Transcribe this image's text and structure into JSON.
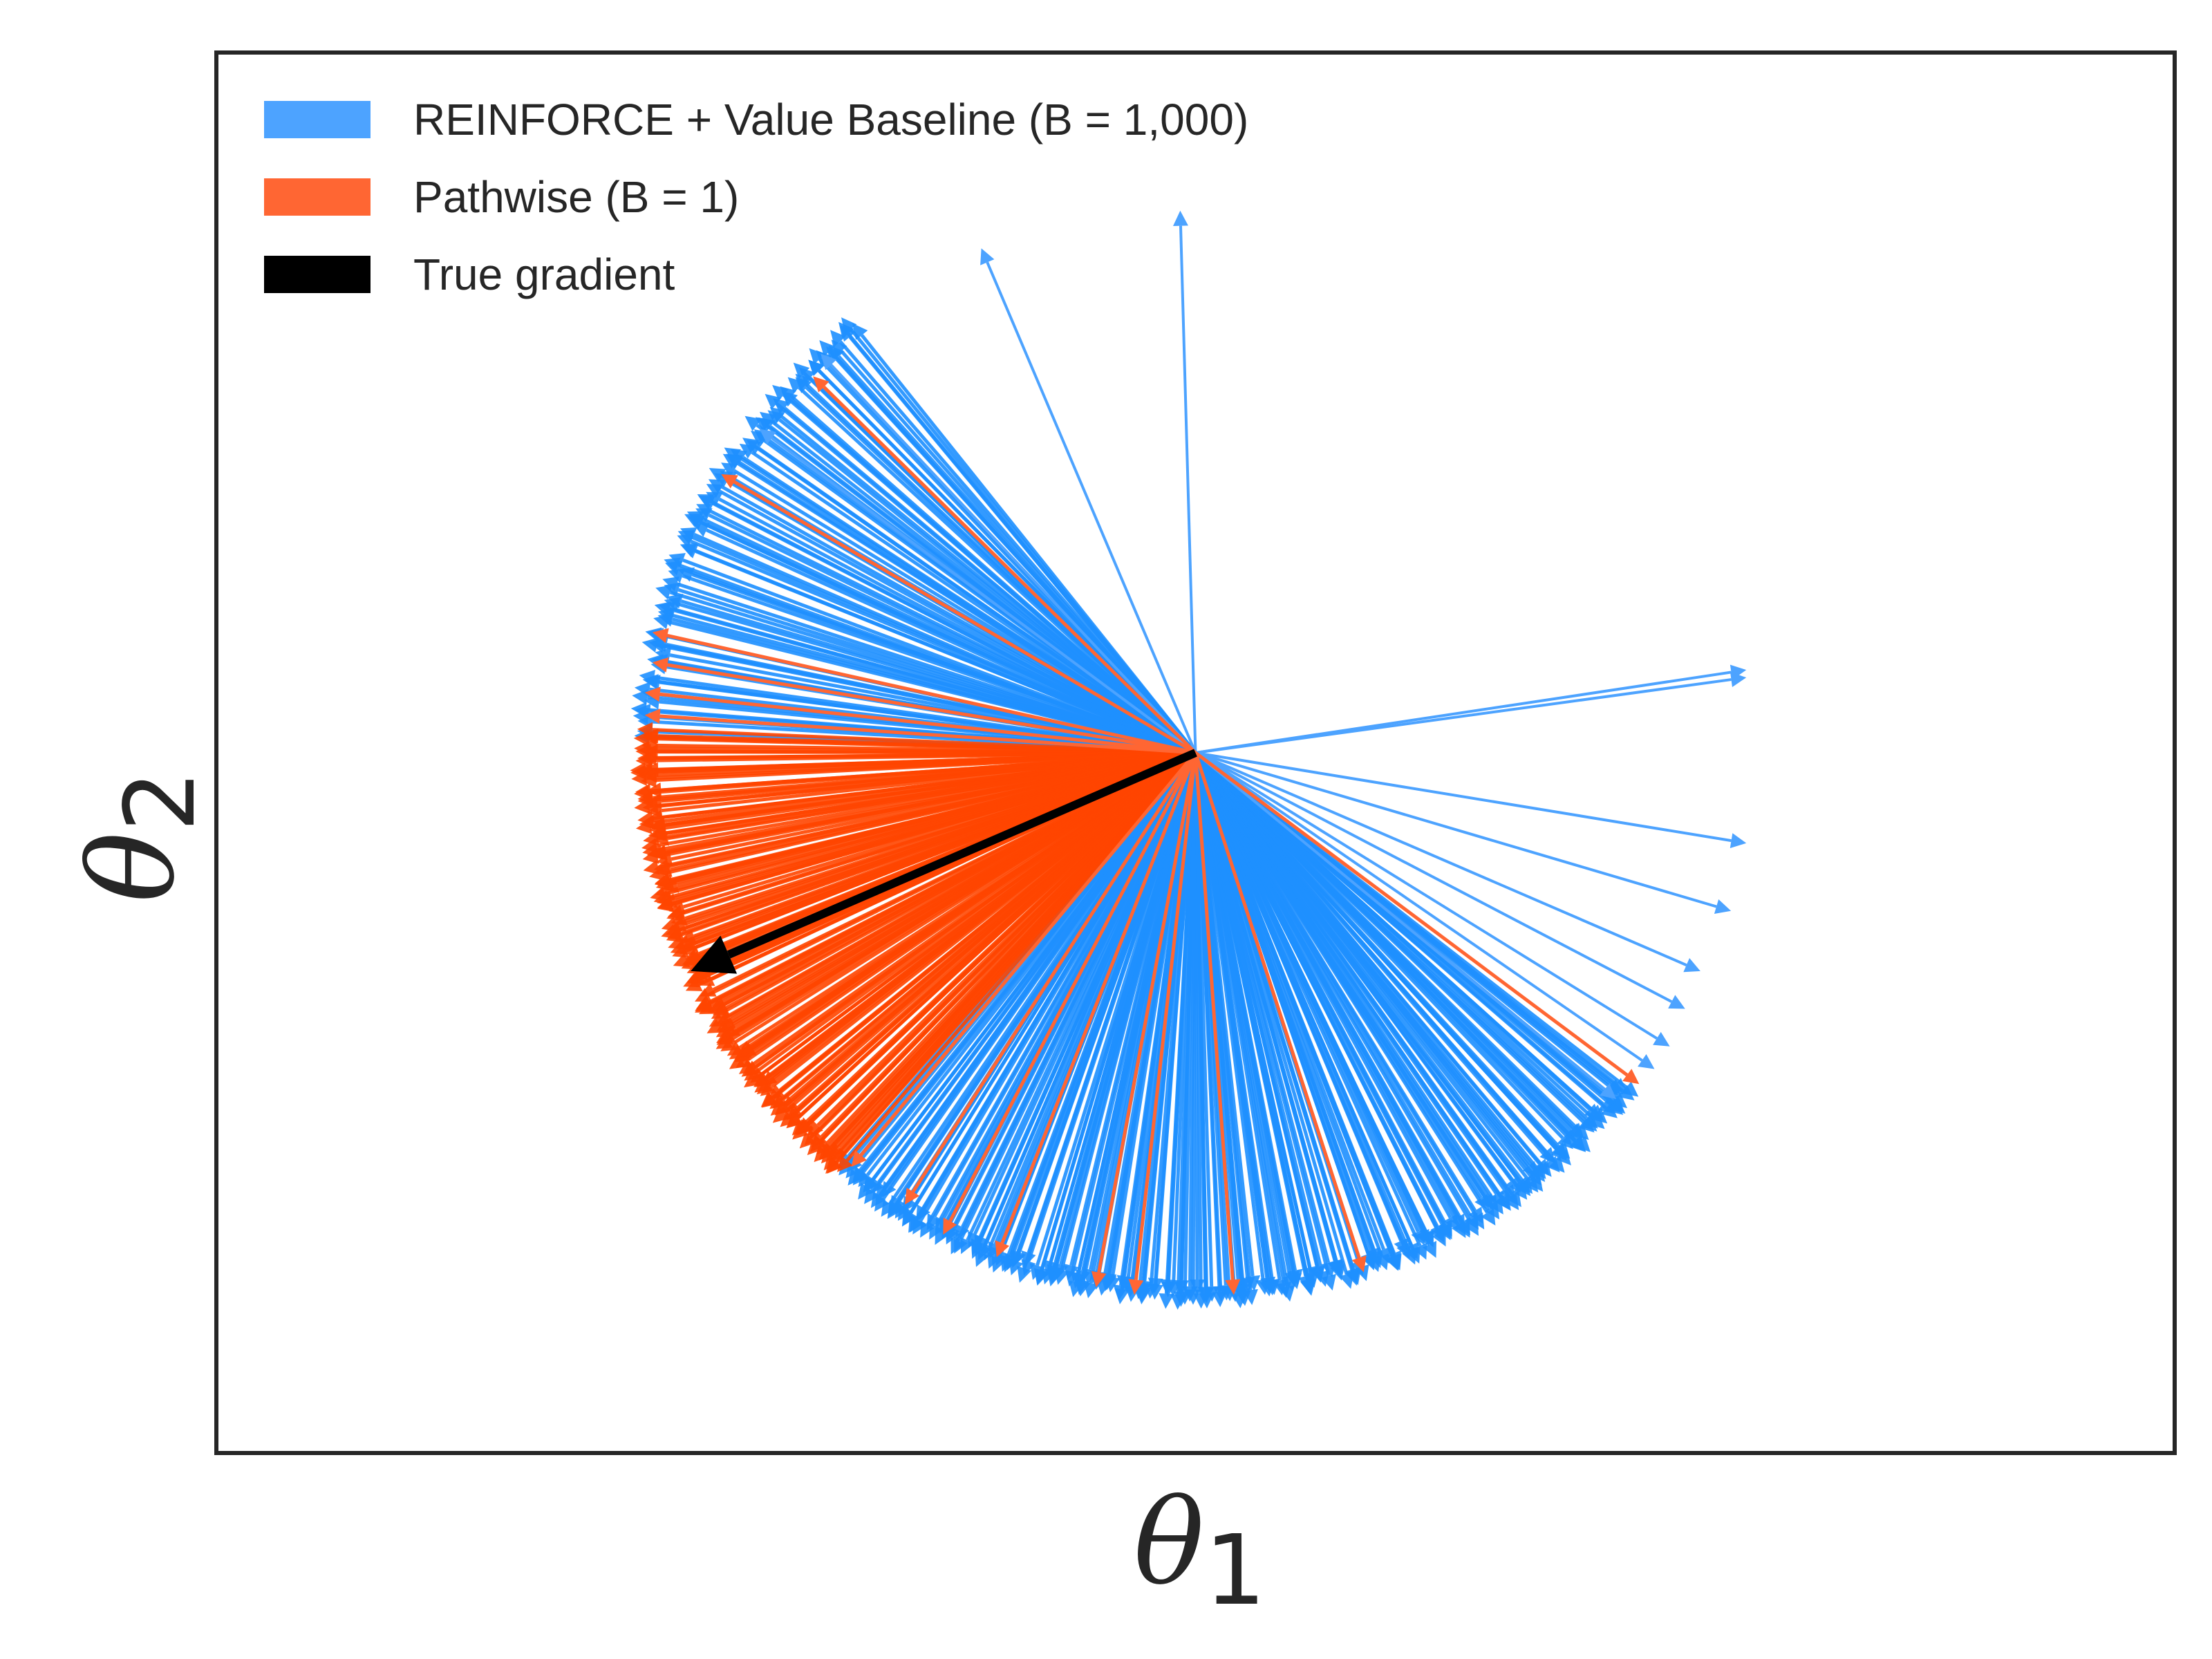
{
  "chart_data": {
    "type": "quiver",
    "xlabel": "θ",
    "xlabel_subscript": "1",
    "ylabel": "θ",
    "ylabel_subscript": "2",
    "xlim": [
      -1.28,
      1.28
    ],
    "ylim": [
      -0.93,
      0.93
    ],
    "ticks_shown": false,
    "grid": false,
    "legend_position": "top-left",
    "origin": [
      0,
      0
    ],
    "legend": [
      {
        "label": "REINFORCE + Value Baseline (B = 1,000)",
        "color": "#4DA3FF"
      },
      {
        "label": "Pathwise (B = 1)",
        "color": "#FF6633"
      },
      {
        "label": "True gradient",
        "color": "#000000"
      }
    ],
    "colors": {
      "reinforce": "#1E90FF",
      "reinforce_outlier": "#4DA3FF",
      "pathwise": "#FF4500",
      "pathwise_outlier": "#FF6633",
      "true_gradient": "#000000",
      "axes": "#262626"
    },
    "true_gradient": {
      "dx": -0.66,
      "dy": -0.29
    },
    "series": [
      {
        "name": "Pathwise (B = 1)",
        "fan": {
          "radius": 0.73,
          "angle_from_deg": 178,
          "angle_to_deg": 230,
          "count": 170
        },
        "vectors": [
          {
            "dx": -0.5,
            "dy": 0.5
          },
          {
            "dx": -0.62,
            "dy": 0.37
          },
          {
            "dx": -0.71,
            "dy": 0.16
          },
          {
            "dx": -0.71,
            "dy": 0.12
          },
          {
            "dx": -0.72,
            "dy": 0.08
          },
          {
            "dx": -0.72,
            "dy": 0.05
          },
          {
            "dx": -0.45,
            "dy": -0.55
          },
          {
            "dx": -0.38,
            "dy": -0.6
          },
          {
            "dx": -0.33,
            "dy": -0.64
          },
          {
            "dx": -0.26,
            "dy": -0.67
          },
          {
            "dx": -0.13,
            "dy": -0.71
          },
          {
            "dx": -0.08,
            "dy": -0.72
          },
          {
            "dx": 0.05,
            "dy": -0.72
          },
          {
            "dx": 0.22,
            "dy": -0.69
          },
          {
            "dx": 0.58,
            "dy": -0.44
          }
        ]
      },
      {
        "name": "REINFORCE + Value Baseline (B = 1,000)",
        "fan": {
          "radius": 0.73,
          "angle_from_deg": 128,
          "angle_to_deg": 178,
          "count": 95
        },
        "fan_lower": {
          "radius": 0.73,
          "angle_from_deg": 230,
          "angle_to_deg": 322,
          "count": 260
        },
        "vectors": [
          {
            "dx": -0.28,
            "dy": 0.67
          },
          {
            "dx": -0.02,
            "dy": 0.72
          },
          {
            "dx": -0.49,
            "dy": 0.53
          },
          {
            "dx": -0.57,
            "dy": 0.43
          },
          {
            "dx": 0.72,
            "dy": 0.11
          },
          {
            "dx": 0.72,
            "dy": 0.1
          },
          {
            "dx": 0.72,
            "dy": -0.12
          },
          {
            "dx": 0.7,
            "dy": -0.21
          },
          {
            "dx": 0.66,
            "dy": -0.29
          },
          {
            "dx": 0.64,
            "dy": -0.34
          },
          {
            "dx": 0.62,
            "dy": -0.39
          },
          {
            "dx": 0.6,
            "dy": -0.42
          },
          {
            "dx": 0.55,
            "dy": -0.46
          }
        ]
      }
    ]
  }
}
